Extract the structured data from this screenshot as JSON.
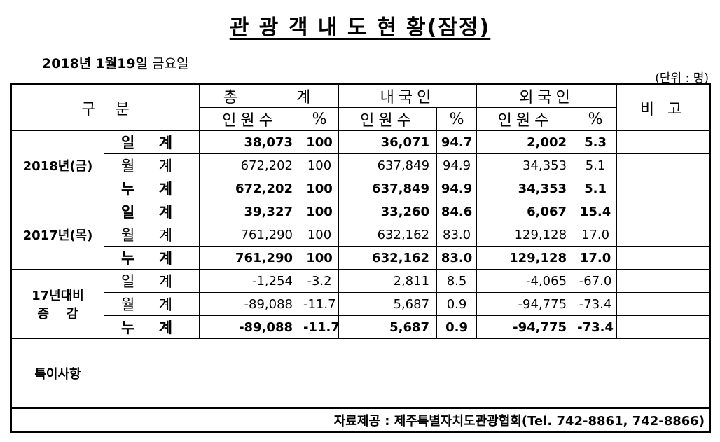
{
  "title": "관 광 객 내 도 현 황(잠정)",
  "date_plain_year": "2018년",
  "date_bold": "1월19일",
  "date_plain_day": "금요일",
  "unit": "(단위 : 명)",
  "header": {
    "category": "구    분",
    "total": "총      계",
    "domestic": "내국인",
    "foreign": "외국인",
    "remarks": "비 고",
    "count": "인원수",
    "pct": "%"
  },
  "groups": [
    {
      "label": "2018년(금)",
      "rows": [
        {
          "k1": "일",
          "k2": "계",
          "tc": "38,073",
          "tp": "100",
          "dc": "36,071",
          "dp": "94.7",
          "fc": "2,002",
          "fp": "5.3",
          "bold": true
        },
        {
          "k1": "월",
          "k2": "계",
          "tc": "672,202",
          "tp": "100",
          "dc": "637,849",
          "dp": "94.9",
          "fc": "34,353",
          "fp": "5.1",
          "bold": false
        },
        {
          "k1": "누",
          "k2": "계",
          "tc": "672,202",
          "tp": "100",
          "dc": "637,849",
          "dp": "94.9",
          "fc": "34,353",
          "fp": "5.1",
          "bold": true
        }
      ]
    },
    {
      "label": "2017년(목)",
      "rows": [
        {
          "k1": "일",
          "k2": "계",
          "tc": "39,327",
          "tp": "100",
          "dc": "33,260",
          "dp": "84.6",
          "fc": "6,067",
          "fp": "15.4",
          "bold": true
        },
        {
          "k1": "월",
          "k2": "계",
          "tc": "761,290",
          "tp": "100",
          "dc": "632,162",
          "dp": "83.0",
          "fc": "129,128",
          "fp": "17.0",
          "bold": false
        },
        {
          "k1": "누",
          "k2": "계",
          "tc": "761,290",
          "tp": "100",
          "dc": "632,162",
          "dp": "83.0",
          "fc": "129,128",
          "fp": "17.0",
          "bold": true
        }
      ]
    },
    {
      "label_line1": "17년대비",
      "label_line2": "증    감",
      "rows": [
        {
          "k1": "일",
          "k2": "계",
          "tc": "-1,254",
          "tp": "-3.2",
          "dc": "2,811",
          "dp": "8.5",
          "fc": "-4,065",
          "fp": "-67.0",
          "bold": false
        },
        {
          "k1": "월",
          "k2": "계",
          "tc": "-89,088",
          "tp": "-11.7",
          "dc": "5,687",
          "dp": "0.9",
          "fc": "-94,775",
          "fp": "-73.4",
          "bold": false
        },
        {
          "k1": "누",
          "k2": "계",
          "tc": "-89,088",
          "tp": "-11.7",
          "dc": "5,687",
          "dp": "0.9",
          "fc": "-94,775",
          "fp": "-73.4",
          "bold": true
        }
      ]
    }
  ],
  "notes_label": "특이사항",
  "source": "자료제공 : 제주특별자치도관광협회(Tel. 742-8861, 742-8866)"
}
